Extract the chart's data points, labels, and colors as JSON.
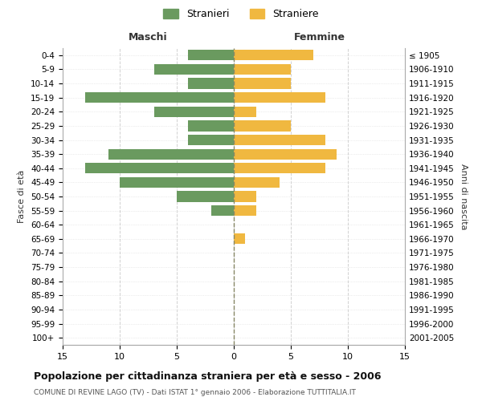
{
  "age_groups": [
    "0-4",
    "5-9",
    "10-14",
    "15-19",
    "20-24",
    "25-29",
    "30-34",
    "35-39",
    "40-44",
    "45-49",
    "50-54",
    "55-59",
    "60-64",
    "65-69",
    "70-74",
    "75-79",
    "80-84",
    "85-89",
    "90-94",
    "95-99",
    "100+"
  ],
  "birth_years": [
    "2001-2005",
    "1996-2000",
    "1991-1995",
    "1986-1990",
    "1981-1985",
    "1976-1980",
    "1971-1975",
    "1966-1970",
    "1961-1965",
    "1956-1960",
    "1951-1955",
    "1946-1950",
    "1941-1945",
    "1936-1940",
    "1931-1935",
    "1926-1930",
    "1921-1925",
    "1916-1920",
    "1911-1915",
    "1906-1910",
    "≤ 1905"
  ],
  "males": [
    4,
    7,
    4,
    13,
    7,
    4,
    4,
    11,
    13,
    10,
    5,
    2,
    0,
    0,
    0,
    0,
    0,
    0,
    0,
    0,
    0
  ],
  "females": [
    7,
    5,
    5,
    8,
    2,
    5,
    8,
    9,
    8,
    4,
    2,
    2,
    0,
    1,
    0,
    0,
    0,
    0,
    0,
    0,
    0
  ],
  "male_color": "#6a9a5f",
  "female_color": "#f0b840",
  "background_color": "#ffffff",
  "grid_color": "#cccccc",
  "title": "Popolazione per cittadinanza straniera per età e sesso - 2006",
  "subtitle": "COMUNE DI REVINE LAGO (TV) - Dati ISTAT 1° gennaio 2006 - Elaborazione TUTTITALIA.IT",
  "xlabel_left": "Maschi",
  "xlabel_right": "Femmine",
  "ylabel_left": "Fasce di età",
  "ylabel_right": "Anni di nascita",
  "legend_male": "Stranieri",
  "legend_female": "Straniere",
  "xlim": 15
}
